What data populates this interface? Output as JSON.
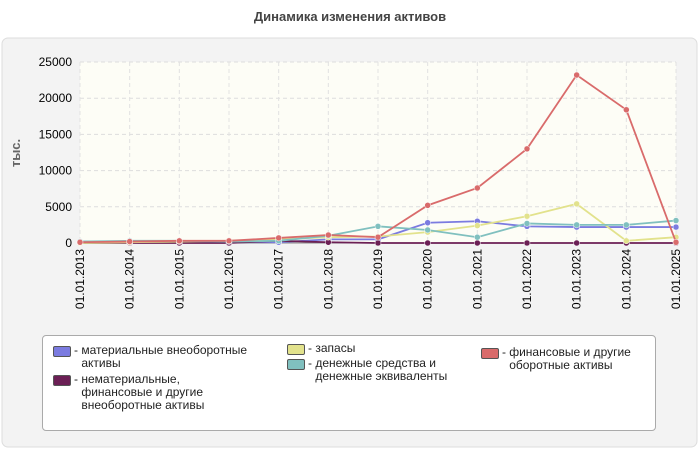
{
  "chart_data": {
    "type": "line",
    "title": "Динамика изменения активов",
    "y_label": "тыс.",
    "categories": [
      "01.01.2013",
      "01.01.2014",
      "01.01.2015",
      "01.01.2016",
      "01.01.2017",
      "01.01.2018",
      "01.01.2019",
      "01.01.2020",
      "01.01.2021",
      "01.01.2022",
      "01.01.2023",
      "01.01.2024",
      "01.01.2025"
    ],
    "ylim": [
      0,
      25000
    ],
    "yticks": [
      0,
      5000,
      10000,
      15000,
      20000,
      25000
    ],
    "grid": true,
    "series": [
      {
        "name": "материальные внеоборотные активы",
        "color": "#7b7be0",
        "values": [
          200,
          200,
          100,
          100,
          100,
          500,
          500,
          2800,
          3000,
          2300,
          2200,
          2200,
          2200
        ]
      },
      {
        "name": "нематериальные, финансовые и другие внеоборотные активы",
        "color": "#6b1f55",
        "values": [
          0,
          0,
          0,
          0,
          300,
          100,
          0,
          0,
          0,
          0,
          0,
          0,
          0
        ]
      },
      {
        "name": "запасы",
        "color": "#e2e28c",
        "values": [
          0,
          100,
          200,
          300,
          500,
          800,
          900,
          1500,
          2400,
          3700,
          5400,
          300,
          800
        ]
      },
      {
        "name": "денежные средства и денежные эквиваленты",
        "color": "#80c0bf",
        "values": [
          200,
          300,
          300,
          200,
          300,
          1000,
          2300,
          1800,
          800,
          2700,
          2500,
          2500,
          3100
        ]
      },
      {
        "name": "финансовые и другие оборотные активы",
        "color": "#d96b6b",
        "values": [
          100,
          200,
          300,
          300,
          700,
          1100,
          800,
          5200,
          7600,
          13000,
          23200,
          18400,
          100
        ]
      }
    ]
  }
}
